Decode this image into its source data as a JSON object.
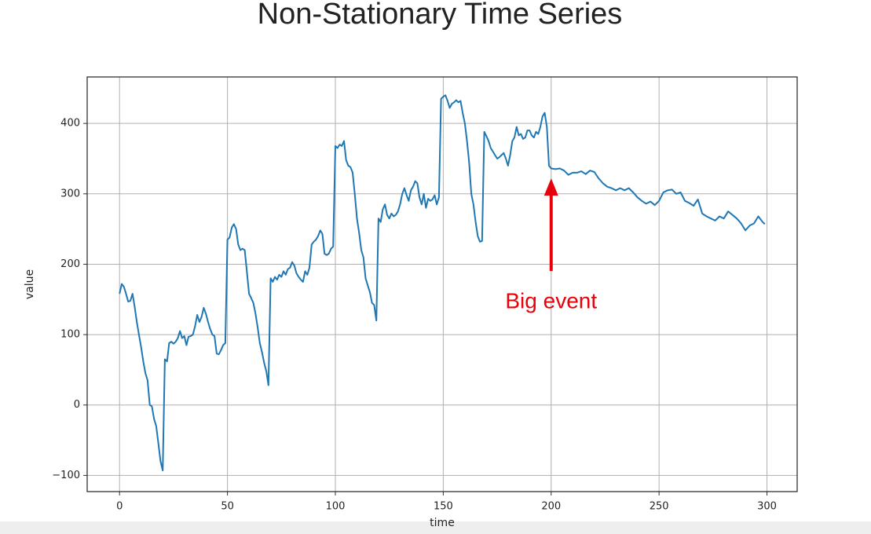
{
  "chart_data": {
    "type": "line",
    "title": "Non-Stationary Time Series",
    "x_label": "time",
    "y_label": "value",
    "xlim": [
      -15,
      314
    ],
    "ylim": [
      -123,
      466
    ],
    "xticks": [
      0,
      50,
      100,
      150,
      200,
      250,
      300
    ],
    "yticks": [
      {
        "value": -100,
        "label": "−100"
      },
      0,
      100,
      200,
      300,
      400
    ],
    "grid": true,
    "series": [
      {
        "color": "#1f77b4",
        "x": [
          0,
          1,
          2,
          3,
          4,
          5,
          6,
          7,
          8,
          9,
          10,
          11,
          12,
          13,
          14,
          15,
          16,
          17,
          18,
          19,
          20,
          21,
          22,
          23,
          24,
          25,
          26,
          27,
          28,
          29,
          30,
          31,
          32,
          33,
          34,
          35,
          36,
          37,
          38,
          39,
          40,
          41,
          42,
          43,
          44,
          45,
          46,
          47,
          48,
          49,
          50,
          51,
          52,
          53,
          54,
          55,
          56,
          57,
          58,
          59,
          60,
          61,
          62,
          63,
          64,
          65,
          66,
          67,
          68,
          69,
          70,
          71,
          72,
          73,
          74,
          75,
          76,
          77,
          78,
          79,
          80,
          81,
          82,
          83,
          84,
          85,
          86,
          87,
          88,
          89,
          90,
          91,
          92,
          93,
          94,
          95,
          96,
          97,
          98,
          99,
          100,
          101,
          102,
          103,
          104,
          105,
          106,
          107,
          108,
          109,
          110,
          111,
          112,
          113,
          114,
          115,
          116,
          117,
          118,
          119,
          120,
          121,
          122,
          123,
          124,
          125,
          126,
          127,
          128,
          129,
          130,
          131,
          132,
          133,
          134,
          135,
          136,
          137,
          138,
          139,
          140,
          141,
          142,
          143,
          144,
          145,
          146,
          147,
          148,
          149,
          150,
          151,
          152,
          153,
          154,
          155,
          156,
          157,
          158,
          159,
          160,
          161,
          162,
          163,
          164,
          165,
          166,
          167,
          168,
          169,
          170,
          171,
          172,
          173,
          174,
          175,
          176,
          177,
          178,
          179,
          180,
          181,
          182,
          183,
          184,
          185,
          186,
          187,
          188,
          189,
          190,
          191,
          192,
          193,
          194,
          195,
          196,
          197,
          198,
          199,
          200,
          202,
          204,
          206,
          208,
          210,
          212,
          214,
          216,
          218,
          220,
          222,
          224,
          226,
          228,
          230,
          232,
          234,
          236,
          238,
          240,
          242,
          244,
          246,
          248,
          250,
          252,
          254,
          256,
          258,
          260,
          262,
          264,
          266,
          268,
          270,
          272,
          274,
          276,
          278,
          280,
          282,
          284,
          286,
          288,
          290,
          292,
          294,
          296,
          298,
          299
        ],
        "values": [
          158,
          172,
          168,
          158,
          147,
          148,
          158,
          140,
          118,
          100,
          82,
          62,
          45,
          35,
          0,
          -2,
          -20,
          -30,
          -55,
          -80,
          -93,
          65,
          62,
          88,
          90,
          87,
          90,
          95,
          105,
          95,
          98,
          85,
          97,
          98,
          100,
          112,
          128,
          118,
          125,
          138,
          130,
          118,
          108,
          100,
          98,
          73,
          72,
          78,
          85,
          88,
          235,
          238,
          252,
          257,
          250,
          228,
          220,
          222,
          220,
          190,
          158,
          152,
          145,
          130,
          110,
          88,
          75,
          60,
          48,
          28,
          180,
          175,
          182,
          178,
          185,
          182,
          190,
          185,
          193,
          195,
          203,
          198,
          187,
          182,
          178,
          175,
          190,
          185,
          195,
          228,
          232,
          235,
          240,
          248,
          243,
          215,
          213,
          215,
          222,
          225,
          368,
          365,
          370,
          368,
          375,
          348,
          340,
          338,
          330,
          300,
          265,
          245,
          220,
          210,
          180,
          170,
          160,
          145,
          142,
          120,
          265,
          260,
          278,
          285,
          270,
          265,
          272,
          268,
          270,
          275,
          285,
          300,
          308,
          298,
          290,
          305,
          310,
          318,
          315,
          295,
          285,
          300,
          280,
          293,
          290,
          292,
          298,
          285,
          295,
          435,
          438,
          440,
          432,
          422,
          428,
          430,
          433,
          430,
          432,
          415,
          400,
          375,
          345,
          300,
          285,
          260,
          240,
          232,
          233,
          388,
          382,
          375,
          365,
          360,
          355,
          350,
          352,
          355,
          358,
          350,
          340,
          355,
          375,
          380,
          395,
          383,
          385,
          378,
          380,
          390,
          390,
          383,
          380,
          388,
          385,
          395,
          410,
          415,
          395,
          340,
          336,
          335,
          336,
          333,
          327,
          330,
          330,
          332,
          328,
          333,
          331,
          322,
          315,
          310,
          308,
          305,
          308,
          305,
          308,
          302,
          295,
          290,
          286,
          289,
          284,
          290,
          302,
          305,
          306,
          300,
          302,
          290,
          287,
          283,
          292,
          272,
          268,
          265,
          262,
          268,
          265,
          275,
          270,
          265,
          258,
          248,
          255,
          258,
          268,
          260,
          257
        ]
      }
    ],
    "annotations": [
      {
        "text": "Big event",
        "color": "#e8000b",
        "x": 200,
        "y": 322
      }
    ]
  }
}
